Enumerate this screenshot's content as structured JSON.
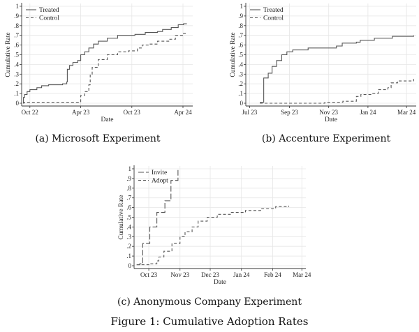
{
  "chart_data": [
    {
      "type": "line",
      "step": true,
      "xlabel": "Date",
      "ylabel": "Cumulative Rate",
      "xlim": [
        "2022-08-25",
        "2024-05-06"
      ],
      "ylim": [
        0,
        1
      ],
      "xticks": [
        {
          "date": "2022-10-01",
          "label": "Oct 22"
        },
        {
          "date": "2023-04-01",
          "label": "Apr 23"
        },
        {
          "date": "2023-10-01",
          "label": "Oct 23"
        },
        {
          "date": "2024-04-01",
          "label": "Apr 24"
        }
      ],
      "yticks": [
        {
          "v": 0,
          "label": "0"
        },
        {
          "v": 0.1,
          "label": ".1"
        },
        {
          "v": 0.2,
          "label": ".2"
        },
        {
          "v": 0.3,
          "label": ".3"
        },
        {
          "v": 0.4,
          "label": ".4"
        },
        {
          "v": 0.5,
          "label": ".5"
        },
        {
          "v": 0.6,
          "label": ".6"
        },
        {
          "v": 0.7,
          "label": ".7"
        },
        {
          "v": 0.8,
          "label": ".8"
        },
        {
          "v": 0.9,
          "label": ".9"
        },
        {
          "v": 1,
          "label": "1"
        }
      ],
      "grid": true,
      "legend": "top-left",
      "caption": "(a) Microsoft Experiment",
      "series": [
        {
          "name": "Treated",
          "style": "solid",
          "points": [
            [
              "2022-09-07",
              0
            ],
            [
              "2022-09-08",
              0.06
            ],
            [
              "2022-09-12",
              0.09
            ],
            [
              "2022-09-21",
              0.12
            ],
            [
              "2022-10-01",
              0.14
            ],
            [
              "2022-10-26",
              0.16
            ],
            [
              "2022-11-12",
              0.18
            ],
            [
              "2022-12-07",
              0.19
            ],
            [
              "2023-01-26",
              0.2
            ],
            [
              "2023-02-10",
              0.22
            ],
            [
              "2023-02-12",
              0.35
            ],
            [
              "2023-02-20",
              0.39
            ],
            [
              "2023-03-04",
              0.42
            ],
            [
              "2023-03-21",
              0.44
            ],
            [
              "2023-04-01",
              0.5
            ],
            [
              "2023-04-15",
              0.53
            ],
            [
              "2023-04-30",
              0.57
            ],
            [
              "2023-05-17",
              0.61
            ],
            [
              "2023-06-03",
              0.64
            ],
            [
              "2023-07-05",
              0.67
            ],
            [
              "2023-08-11",
              0.7
            ],
            [
              "2023-10-12",
              0.71
            ],
            [
              "2023-11-18",
              0.73
            ],
            [
              "2024-01-01",
              0.74
            ],
            [
              "2024-01-19",
              0.76
            ],
            [
              "2024-02-19",
              0.78
            ],
            [
              "2024-03-15",
              0.81
            ],
            [
              "2024-04-03",
              0.82
            ],
            [
              "2024-04-15",
              0.82
            ]
          ]
        },
        {
          "name": "Control",
          "style": "dashed",
          "points": [
            [
              "2022-09-07",
              0
            ],
            [
              "2022-09-10",
              0.01
            ],
            [
              "2023-03-31",
              0.01
            ],
            [
              "2023-04-01",
              0.08
            ],
            [
              "2023-04-15",
              0.12
            ],
            [
              "2023-04-30",
              0.19
            ],
            [
              "2023-05-05",
              0.3
            ],
            [
              "2023-05-12",
              0.37
            ],
            [
              "2023-06-03",
              0.45
            ],
            [
              "2023-07-05",
              0.5
            ],
            [
              "2023-08-11",
              0.53
            ],
            [
              "2023-09-19",
              0.54
            ],
            [
              "2023-10-21",
              0.57
            ],
            [
              "2023-11-07",
              0.6
            ],
            [
              "2023-12-02",
              0.61
            ],
            [
              "2024-01-01",
              0.64
            ],
            [
              "2024-02-14",
              0.66
            ],
            [
              "2024-03-05",
              0.7
            ],
            [
              "2024-04-03",
              0.72
            ],
            [
              "2024-04-15",
              0.72
            ]
          ]
        }
      ]
    },
    {
      "type": "line",
      "step": true,
      "xlabel": "Date",
      "ylabel": "Cumulative Rate",
      "xlim": [
        "2023-06-23",
        "2024-03-16"
      ],
      "ylim": [
        0,
        1
      ],
      "xticks": [
        {
          "date": "2023-07-01",
          "label": "Jul 23"
        },
        {
          "date": "2023-09-01",
          "label": "Sep 23"
        },
        {
          "date": "2023-11-01",
          "label": "Nov 23"
        },
        {
          "date": "2024-01-01",
          "label": "Jan 24"
        },
        {
          "date": "2024-03-01",
          "label": "Mar 24"
        }
      ],
      "yticks": [
        {
          "v": 0,
          "label": "0"
        },
        {
          "v": 0.1,
          "label": ".1"
        },
        {
          "v": 0.2,
          "label": ".2"
        },
        {
          "v": 0.3,
          "label": ".3"
        },
        {
          "v": 0.4,
          "label": ".4"
        },
        {
          "v": 0.5,
          "label": ".5"
        },
        {
          "v": 0.6,
          "label": ".6"
        },
        {
          "v": 0.7,
          "label": ".7"
        },
        {
          "v": 0.8,
          "label": ".8"
        },
        {
          "v": 0.9,
          "label": ".9"
        },
        {
          "v": 1,
          "label": "1"
        }
      ],
      "grid": true,
      "legend": "top-left",
      "caption": "(b) Accenture Experiment",
      "series": [
        {
          "name": "Treated",
          "style": "solid",
          "points": [
            [
              "2023-07-17",
              0.01
            ],
            [
              "2023-07-23",
              0.26
            ],
            [
              "2023-07-30",
              0.31
            ],
            [
              "2023-08-05",
              0.38
            ],
            [
              "2023-08-12",
              0.44
            ],
            [
              "2023-08-20",
              0.5
            ],
            [
              "2023-08-28",
              0.53
            ],
            [
              "2023-09-06",
              0.55
            ],
            [
              "2023-09-30",
              0.57
            ],
            [
              "2023-11-13",
              0.59
            ],
            [
              "2023-11-22",
              0.62
            ],
            [
              "2023-12-14",
              0.63
            ],
            [
              "2023-12-20",
              0.65
            ],
            [
              "2024-01-11",
              0.67
            ],
            [
              "2024-02-08",
              0.69
            ],
            [
              "2024-03-12",
              0.7
            ]
          ]
        },
        {
          "name": "Control",
          "style": "dashed",
          "points": [
            [
              "2023-07-17",
              0
            ],
            [
              "2023-10-26",
              0.01
            ],
            [
              "2023-11-23",
              0.02
            ],
            [
              "2023-12-14",
              0.07
            ],
            [
              "2023-12-21",
              0.09
            ],
            [
              "2024-01-07",
              0.1
            ],
            [
              "2024-01-17",
              0.14
            ],
            [
              "2024-02-01",
              0.16
            ],
            [
              "2024-02-06",
              0.21
            ],
            [
              "2024-02-16",
              0.23
            ],
            [
              "2024-03-12",
              0.25
            ]
          ]
        }
      ]
    },
    {
      "type": "line",
      "step": true,
      "xlabel": "Date",
      "ylabel": "Cumulative Rate",
      "xlim": [
        "2023-09-15",
        "2024-03-05"
      ],
      "ylim": [
        0,
        1
      ],
      "xticks": [
        {
          "date": "2023-10-01",
          "label": "Oct 23"
        },
        {
          "date": "2023-11-01",
          "label": "Nov 23"
        },
        {
          "date": "2023-12-01",
          "label": "Dec 23"
        },
        {
          "date": "2024-01-01",
          "label": "Jan 24"
        },
        {
          "date": "2024-02-01",
          "label": "Feb 24"
        },
        {
          "date": "2024-03-01",
          "label": "Mar 24"
        }
      ],
      "yticks": [
        {
          "v": 0,
          "label": "0"
        },
        {
          "v": 0.1,
          "label": ".1"
        },
        {
          "v": 0.2,
          "label": ".2"
        },
        {
          "v": 0.3,
          "label": ".3"
        },
        {
          "v": 0.4,
          "label": ".4"
        },
        {
          "v": 0.5,
          "label": ".5"
        },
        {
          "v": 0.6,
          "label": ".6"
        },
        {
          "v": 0.7,
          "label": ".7"
        },
        {
          "v": 0.8,
          "label": ".8"
        },
        {
          "v": 0.9,
          "label": ".9"
        },
        {
          "v": 1,
          "label": "1"
        }
      ],
      "grid": true,
      "legend": "top-left",
      "caption": "(c) Anonymous Company Experiment",
      "series": [
        {
          "name": "Invite",
          "style": "longdash",
          "points": [
            [
              "2023-09-19",
              0.01
            ],
            [
              "2023-09-22",
              0.02
            ],
            [
              "2023-09-25",
              0.23
            ],
            [
              "2023-10-02",
              0.4
            ],
            [
              "2023-10-09",
              0.55
            ],
            [
              "2023-10-17",
              0.67
            ],
            [
              "2023-10-23",
              0.88
            ],
            [
              "2023-10-30",
              1.0
            ]
          ]
        },
        {
          "name": "Adopt",
          "style": "dashed",
          "points": [
            [
              "2023-09-19",
              0.01
            ],
            [
              "2023-10-02",
              0.02
            ],
            [
              "2023-10-09",
              0.05
            ],
            [
              "2023-10-11",
              0.09
            ],
            [
              "2023-10-16",
              0.15
            ],
            [
              "2023-10-24",
              0.23
            ],
            [
              "2023-11-01",
              0.3
            ],
            [
              "2023-11-06",
              0.35
            ],
            [
              "2023-11-13",
              0.4
            ],
            [
              "2023-11-19",
              0.46
            ],
            [
              "2023-11-28",
              0.5
            ],
            [
              "2023-12-08",
              0.53
            ],
            [
              "2023-12-21",
              0.55
            ],
            [
              "2024-01-05",
              0.57
            ],
            [
              "2024-01-20",
              0.59
            ],
            [
              "2024-02-04",
              0.61
            ],
            [
              "2024-02-17",
              0.62
            ]
          ]
        }
      ]
    }
  ],
  "figure_caption": "Figure 1: Cumulative Adoption Rates",
  "colors": {
    "line": "#555555",
    "grid": "#e6e6e6",
    "axis": "#333333"
  }
}
